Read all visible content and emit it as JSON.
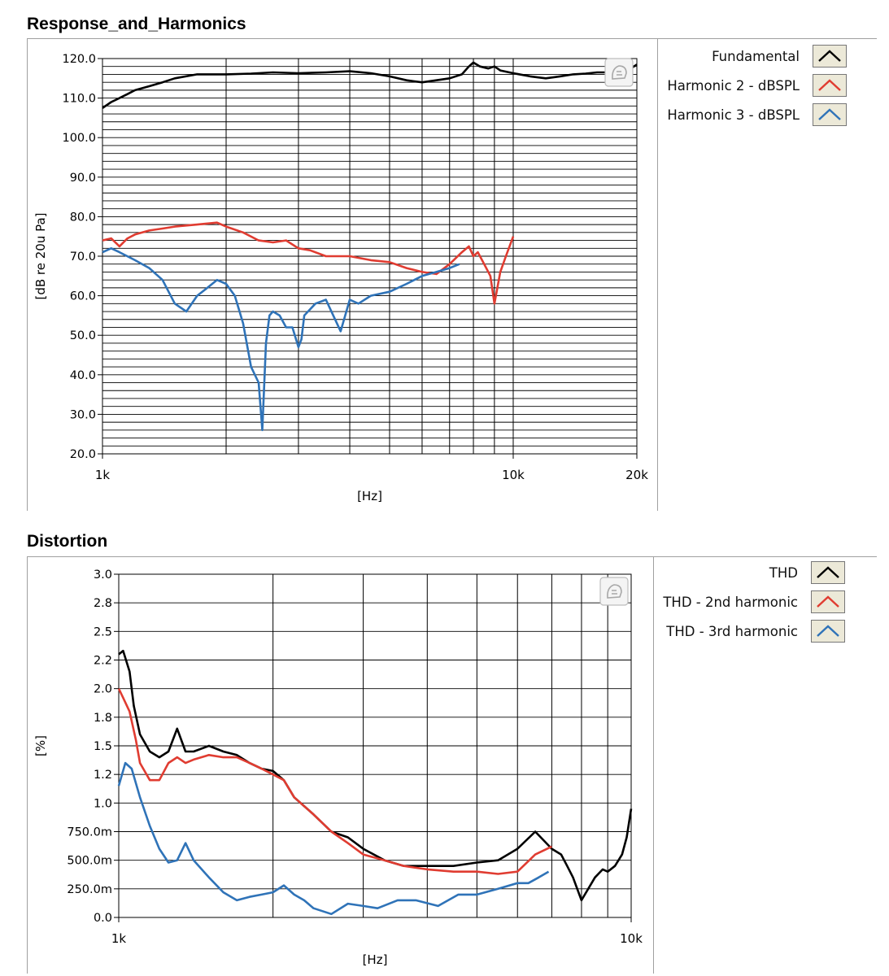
{
  "panels": {
    "response": {
      "title": "Response_and_Harmonics"
    },
    "distortion": {
      "title": "Distortion"
    }
  },
  "legend_swatch_fill": "#ece9d8",
  "chart_data": [
    {
      "type": "line",
      "title": "Response_and_Harmonics",
      "xlabel": "[Hz]",
      "ylabel": "[dB re 20u Pa]",
      "xscale": "log",
      "xlim": [
        1000,
        20000
      ],
      "ylim": [
        20,
        120
      ],
      "x_ticks": [
        {
          "v": 1000,
          "label": "1k"
        },
        {
          "v": 10000,
          "label": "10k"
        },
        {
          "v": 20000,
          "label": "20k"
        }
      ],
      "y_ticks": [
        {
          "v": 120,
          "label": "120.0"
        },
        {
          "v": 110,
          "label": "110.0"
        },
        {
          "v": 100,
          "label": "100.0"
        },
        {
          "v": 90,
          "label": "90.0"
        },
        {
          "v": 80,
          "label": "80.0"
        },
        {
          "v": 70,
          "label": "70.0"
        },
        {
          "v": 60,
          "label": "60.0"
        },
        {
          "v": 50,
          "label": "50.0"
        },
        {
          "v": 40,
          "label": "40.0"
        },
        {
          "v": 30,
          "label": "30.0"
        },
        {
          "v": 20,
          "label": "20.0"
        }
      ],
      "grid": true,
      "legend_position": "right",
      "series": [
        {
          "name": "Fundamental",
          "color": "#000000",
          "x": [
            1000,
            1050,
            1100,
            1150,
            1200,
            1300,
            1400,
            1500,
            1700,
            2000,
            2300,
            2600,
            3000,
            3500,
            4000,
            4500,
            5000,
            5500,
            6000,
            6500,
            7000,
            7500,
            7800,
            8000,
            8300,
            8700,
            9000,
            9300,
            10000,
            11000,
            12000,
            13000,
            14000,
            15000,
            16000,
            17000,
            18000,
            19000,
            20000
          ],
          "y": [
            107.5,
            109,
            110,
            111,
            112,
            113,
            114,
            115,
            116,
            116,
            116.2,
            116.5,
            116.3,
            116.5,
            116.8,
            116.3,
            115.5,
            114.5,
            114,
            114.5,
            115,
            116,
            118,
            119,
            118,
            117.5,
            118,
            117,
            116.3,
            115.5,
            115,
            115.5,
            116,
            116.2,
            116.5,
            116.5,
            117,
            117,
            118.5
          ]
        },
        {
          "name": "Harmonic 2 - dBSPL",
          "color": "#e03c31",
          "x": [
            1000,
            1050,
            1100,
            1150,
            1200,
            1300,
            1400,
            1500,
            1700,
            1900,
            2000,
            2200,
            2400,
            2600,
            2800,
            3000,
            3200,
            3500,
            4000,
            4500,
            5000,
            5500,
            6000,
            6500,
            7000,
            7500,
            7800,
            8000,
            8200,
            8500,
            8800,
            9000,
            9300,
            9600,
            10000
          ],
          "y": [
            74,
            74.5,
            72.5,
            74.5,
            75.5,
            76.5,
            77,
            77.5,
            78,
            78.5,
            77.5,
            76,
            74,
            73.5,
            74,
            72,
            71.5,
            70,
            70,
            69,
            68.5,
            67,
            66,
            65.5,
            68,
            71,
            72.5,
            70,
            71,
            68,
            65,
            58,
            66,
            70,
            75
          ]
        },
        {
          "name": "Harmonic 3 - dBSPL",
          "color": "#2f73b8",
          "x": [
            1000,
            1050,
            1100,
            1200,
            1300,
            1400,
            1500,
            1600,
            1700,
            1800,
            1900,
            2000,
            2100,
            2200,
            2300,
            2400,
            2450,
            2500,
            2550,
            2600,
            2700,
            2800,
            2900,
            3000,
            3050,
            3100,
            3300,
            3500,
            3800,
            4000,
            4200,
            4500,
            5000,
            5500,
            6000,
            6500,
            7000,
            7400
          ],
          "y": [
            71,
            72,
            71,
            69,
            67,
            64,
            58,
            56,
            60,
            62,
            64,
            63,
            60,
            53,
            42,
            38,
            26,
            48,
            55,
            56,
            55,
            52,
            52,
            47,
            49,
            55,
            58,
            59,
            51,
            59,
            58,
            60,
            61,
            63,
            65,
            66,
            67,
            68
          ]
        }
      ]
    },
    {
      "type": "line",
      "title": "Distortion",
      "xlabel": "[Hz]",
      "ylabel": "[%]",
      "xscale": "log",
      "xlim": [
        1000,
        10000
      ],
      "ylim": [
        0,
        3
      ],
      "x_ticks": [
        {
          "v": 1000,
          "label": "1k"
        },
        {
          "v": 10000,
          "label": "10k"
        }
      ],
      "y_ticks": [
        {
          "v": 3.0,
          "label": "3.0"
        },
        {
          "v": 2.75,
          "label": "2.8"
        },
        {
          "v": 2.5,
          "label": "2.5"
        },
        {
          "v": 2.25,
          "label": "2.2"
        },
        {
          "v": 2.0,
          "label": "2.0"
        },
        {
          "v": 1.75,
          "label": "1.8"
        },
        {
          "v": 1.5,
          "label": "1.5"
        },
        {
          "v": 1.25,
          "label": "1.2"
        },
        {
          "v": 1.0,
          "label": "1.0"
        },
        {
          "v": 0.75,
          "label": "750.0m"
        },
        {
          "v": 0.5,
          "label": "500.0m"
        },
        {
          "v": 0.25,
          "label": "250.0m"
        },
        {
          "v": 0.0,
          "label": "0.0"
        }
      ],
      "grid": true,
      "legend_position": "right",
      "series": [
        {
          "name": "THD",
          "color": "#000000",
          "x": [
            1000,
            1020,
            1050,
            1070,
            1100,
            1150,
            1200,
            1250,
            1300,
            1350,
            1400,
            1500,
            1600,
            1700,
            1800,
            1900,
            2000,
            2100,
            2200,
            2400,
            2600,
            2800,
            3000,
            3300,
            3600,
            4000,
            4500,
            5000,
            5500,
            6000,
            6500,
            7000,
            7300,
            7500,
            7700,
            8000,
            8500,
            8800,
            9000,
            9300,
            9600,
            9800,
            10000
          ],
          "y": [
            2.3,
            2.33,
            2.15,
            1.85,
            1.6,
            1.45,
            1.4,
            1.45,
            1.65,
            1.45,
            1.45,
            1.5,
            1.45,
            1.42,
            1.35,
            1.3,
            1.28,
            1.2,
            1.05,
            0.9,
            0.75,
            0.7,
            0.6,
            0.5,
            0.45,
            0.45,
            0.45,
            0.48,
            0.5,
            0.6,
            0.75,
            0.6,
            0.55,
            0.45,
            0.35,
            0.15,
            0.35,
            0.42,
            0.4,
            0.45,
            0.55,
            0.7,
            0.95
          ]
        },
        {
          "name": "THD - 2nd harmonic",
          "color": "#e03c31",
          "x": [
            1000,
            1020,
            1050,
            1080,
            1100,
            1150,
            1200,
            1250,
            1300,
            1350,
            1400,
            1500,
            1600,
            1700,
            1800,
            1900,
            2000,
            2100,
            2200,
            2400,
            2600,
            2800,
            3000,
            3300,
            3600,
            4000,
            4500,
            5000,
            5500,
            6000,
            6500,
            7000
          ],
          "y": [
            2.0,
            1.92,
            1.8,
            1.55,
            1.35,
            1.2,
            1.2,
            1.35,
            1.4,
            1.35,
            1.38,
            1.42,
            1.4,
            1.4,
            1.35,
            1.3,
            1.25,
            1.2,
            1.05,
            0.9,
            0.75,
            0.65,
            0.55,
            0.5,
            0.45,
            0.42,
            0.4,
            0.4,
            0.38,
            0.4,
            0.55,
            0.62
          ]
        },
        {
          "name": "THD - 3rd harmonic",
          "color": "#2f73b8",
          "x": [
            1000,
            1030,
            1060,
            1100,
            1150,
            1200,
            1250,
            1300,
            1350,
            1400,
            1500,
            1600,
            1700,
            1800,
            1900,
            2000,
            2100,
            2200,
            2300,
            2400,
            2600,
            2800,
            3000,
            3200,
            3500,
            3800,
            4200,
            4600,
            5000,
            5500,
            6000,
            6300,
            6600,
            6900
          ],
          "y": [
            1.15,
            1.35,
            1.3,
            1.05,
            0.8,
            0.6,
            0.48,
            0.5,
            0.65,
            0.5,
            0.35,
            0.22,
            0.15,
            0.18,
            0.2,
            0.22,
            0.28,
            0.2,
            0.15,
            0.08,
            0.03,
            0.12,
            0.1,
            0.08,
            0.15,
            0.15,
            0.1,
            0.2,
            0.2,
            0.25,
            0.3,
            0.3,
            0.35,
            0.4
          ]
        }
      ]
    }
  ]
}
